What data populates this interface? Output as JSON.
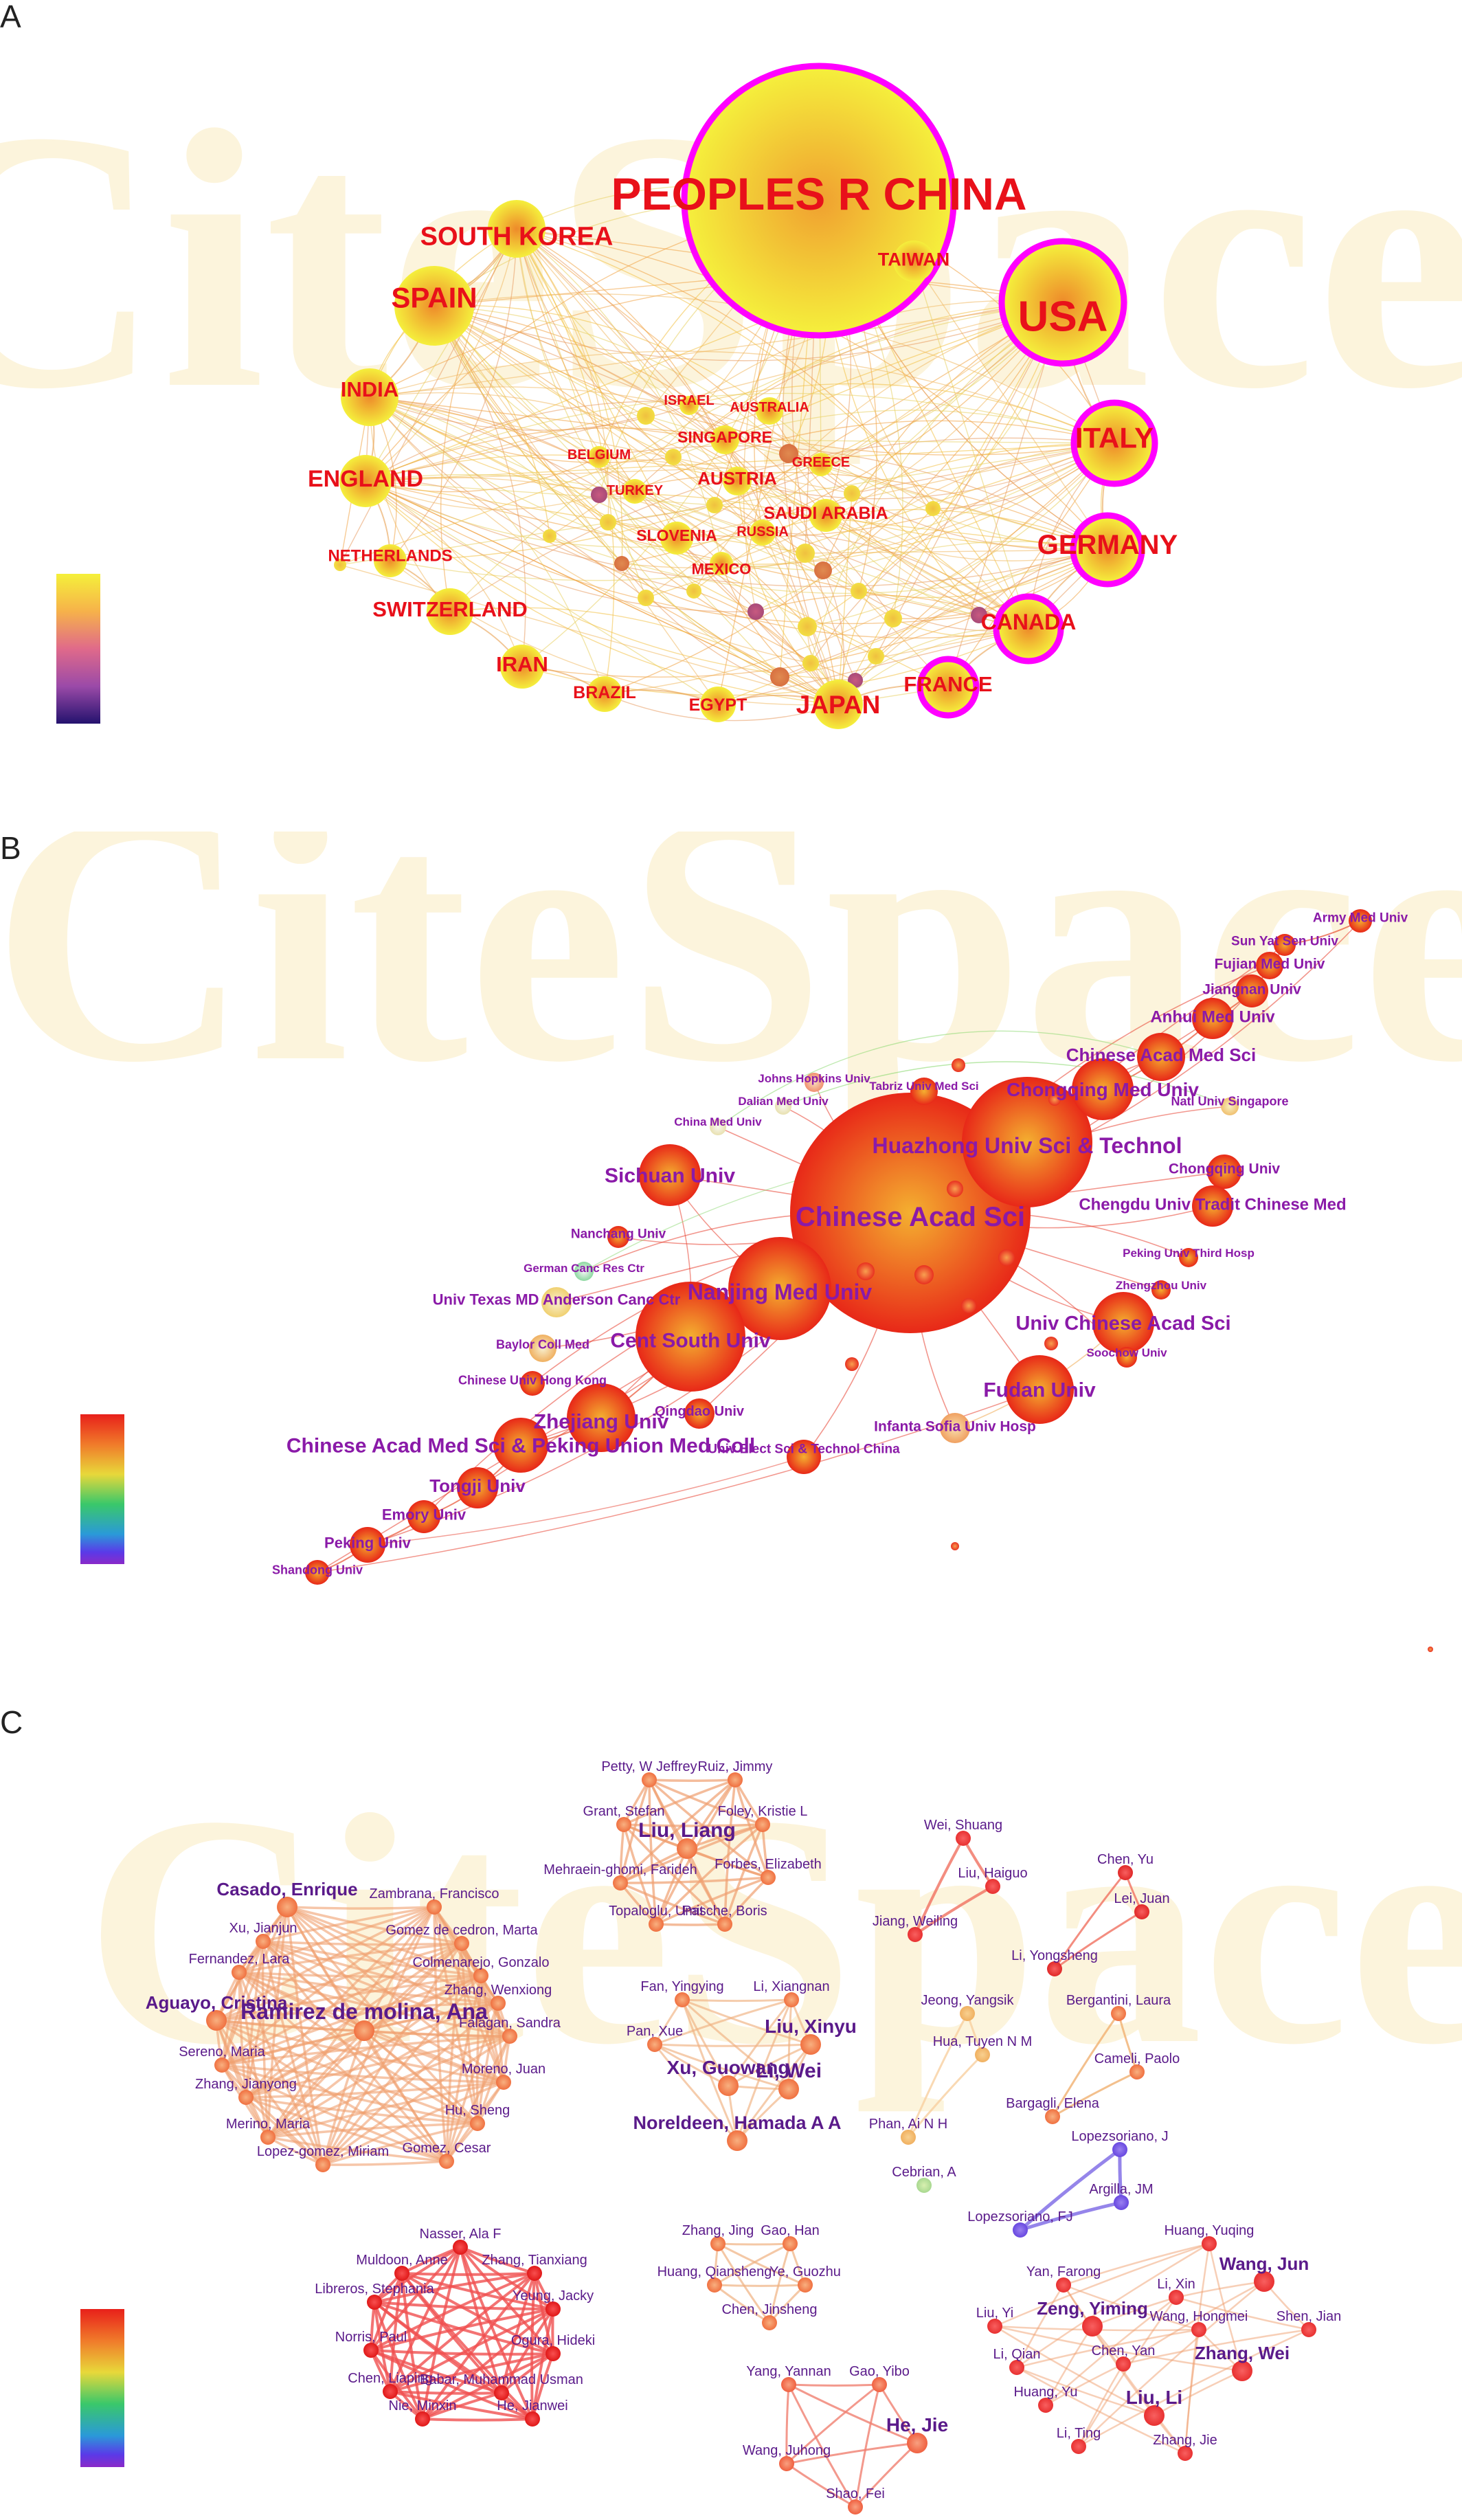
{
  "panels": [
    {
      "id": "A",
      "label": "A",
      "watermark": "CiteSpace",
      "legend_colors": [
        "#f5f03a",
        "#f6b24a",
        "#e06a8a",
        "#9b4aa8",
        "#3a1e8e",
        "#24126e"
      ],
      "accent": "#ff00ff",
      "nodes": [
        {
          "label": "PEOPLES R CHINA",
          "ring": true
        },
        {
          "label": "USA",
          "ring": true
        },
        {
          "label": "SOUTH KOREA",
          "ring": false
        },
        {
          "label": "SPAIN",
          "ring": false
        },
        {
          "label": "TAIWAN",
          "ring": false
        },
        {
          "label": "INDIA",
          "ring": false
        },
        {
          "label": "ITALY",
          "ring": true
        },
        {
          "label": "ENGLAND",
          "ring": false
        },
        {
          "label": "GERMANY",
          "ring": true
        },
        {
          "label": "NETHERLANDS",
          "ring": false
        },
        {
          "label": "CANADA",
          "ring": true
        },
        {
          "label": "SWITZERLAND",
          "ring": false
        },
        {
          "label": "IRAN",
          "ring": false
        },
        {
          "label": "FRANCE",
          "ring": true
        },
        {
          "label": "JAPAN",
          "ring": false
        },
        {
          "label": "BRAZIL",
          "ring": false
        },
        {
          "label": "EGYPT",
          "ring": false
        },
        {
          "label": "ISRAEL",
          "ring": false
        },
        {
          "label": "AUSTRALIA",
          "ring": false
        },
        {
          "label": "SINGAPORE",
          "ring": false
        },
        {
          "label": "BELGIUM",
          "ring": false
        },
        {
          "label": "AUSTRIA",
          "ring": false
        },
        {
          "label": "GREECE",
          "ring": false
        },
        {
          "label": "TURKEY",
          "ring": false
        },
        {
          "label": "SAUDI ARABIA",
          "ring": false
        },
        {
          "label": "SLOVENIA",
          "ring": false
        },
        {
          "label": "RUSSIA",
          "ring": false
        },
        {
          "label": "MEXICO",
          "ring": false
        }
      ]
    },
    {
      "id": "B",
      "label": "B",
      "watermark": "CiteSpace",
      "legend_colors": [
        "#e8201a",
        "#f07a2a",
        "#e8d83a",
        "#3ac86a",
        "#2a9ad8",
        "#5a3ae8",
        "#8a2ac8"
      ],
      "nodes": [
        {
          "label": "Chinese Acad Sci"
        },
        {
          "label": "Huazhong Univ Sci & Technol"
        },
        {
          "label": "Nanjing Med Univ"
        },
        {
          "label": "Cent South Univ"
        },
        {
          "label": "Sichuan Univ"
        },
        {
          "label": "Chongqing Med Univ"
        },
        {
          "label": "Chinese Acad Med Sci"
        },
        {
          "label": "Anhui Med Univ"
        },
        {
          "label": "Jiangnan Univ"
        },
        {
          "label": "Fujian Med Univ"
        },
        {
          "label": "Sun Yat Sen Univ"
        },
        {
          "label": "Army Med Univ"
        },
        {
          "label": "Natl Univ Singapore"
        },
        {
          "label": "Chongqing Univ"
        },
        {
          "label": "Chengdu Univ Tradit Chinese Med"
        },
        {
          "label": "Peking Univ Third Hosp"
        },
        {
          "label": "Zhengzhou Univ"
        },
        {
          "label": "Univ Chinese Acad Sci"
        },
        {
          "label": "Soochow Univ"
        },
        {
          "label": "Fudan Univ"
        },
        {
          "label": "Infanta Sofia Univ Hosp"
        },
        {
          "label": "Univ Elect Sci & Technol China"
        },
        {
          "label": "Qingdao Univ"
        },
        {
          "label": "Zhejiang Univ"
        },
        {
          "label": "Chinese Acad Med Sci & Peking Union Med Coll"
        },
        {
          "label": "Tongji Univ"
        },
        {
          "label": "Emory Univ"
        },
        {
          "label": "Peking Univ"
        },
        {
          "label": "Shandong Univ"
        },
        {
          "label": "Chinese Univ Hong Kong"
        },
        {
          "label": "Baylor Coll Med"
        },
        {
          "label": "Univ Texas MD Anderson Canc Ctr"
        },
        {
          "label": "German Canc Res Ctr"
        },
        {
          "label": "Nanchang Univ"
        },
        {
          "label": "China Med Univ"
        },
        {
          "label": "Dalian Med Univ"
        },
        {
          "label": "Johns Hopkins Univ"
        },
        {
          "label": "Tabriz Univ Med Sci"
        }
      ]
    },
    {
      "id": "C",
      "label": "C",
      "watermark": "CiteSpace",
      "legend_colors": [
        "#e8201a",
        "#f07a2a",
        "#e8d83a",
        "#3ac86a",
        "#2a9ad8",
        "#5a3ae8",
        "#8a2ac8"
      ],
      "clusters": [
        {
          "nodes": [
            "Petty, W Jeffrey",
            "Ruiz, Jimmy",
            "Grant, Stefan",
            "Foley, Kristie L",
            "Liu, Liang",
            "Mehraein-ghomi, Farideh",
            "Forbes, Elizabeth",
            "Topaloglu, Umit",
            "Pasche, Boris"
          ]
        },
        {
          "nodes": [
            "Wei, Shuang",
            "Liu, Haiguo",
            "Jiang, Weiling"
          ]
        },
        {
          "nodes": [
            "Chen, Yu",
            "Lei, Juan",
            "Li, Yongsheng"
          ]
        },
        {
          "nodes": [
            "Casado, Enrique",
            "Zambrana, Francisco",
            "Xu, Jianjun",
            "Gomez de cedron, Marta",
            "Fernandez, Lara",
            "Colmenarejo, Gonzalo",
            "Zhang, Wenxiong",
            "Aguayo, Cristina",
            "Ramirez de molina, Ana",
            "Falagan, Sandra",
            "Sereno, Maria",
            "Zhang, Jianyong",
            "Moreno, Juan",
            "Hu, Sheng",
            "Merino, Maria",
            "Lopez-gomez, Miriam",
            "Gomez, Cesar"
          ]
        },
        {
          "nodes": [
            "Fan, Yingying",
            "Li, Xiangnan",
            "Pan, Xue",
            "Liu, Xinyu",
            "Xu, Guowang",
            "Li, Wei",
            "Noreldeen, Hamada A A"
          ]
        },
        {
          "nodes": [
            "Jeong, Yangsik",
            "Hua, Tuyen N M",
            "Phan, Ai N H"
          ]
        },
        {
          "nodes": [
            "Bergantini, Laura",
            "Cameli, Paolo",
            "Bargagli, Elena"
          ]
        },
        {
          "nodes": [
            "Cebrian, A"
          ]
        },
        {
          "nodes": [
            "Lopezsoriano, J",
            "Argilla, JM",
            "Lopezsoriano, FJ"
          ]
        },
        {
          "nodes": [
            "Nasser, Ala F",
            "Muldoon, Anne",
            "Zhang, Tianxiang",
            "Libreros, Stephania",
            "Yeung, Jacky",
            "Norris, Paul",
            "Ogura, Hideki",
            "Chen, Liaping",
            "Babar, Muhammad Usman",
            "Nie, Minxin",
            "He, Jianwei"
          ]
        },
        {
          "nodes": [
            "Zhang, Jing",
            "Gao, Han",
            "Huang, Qiansheng",
            "Ye, Guozhu",
            "Chen, Jinsheng"
          ]
        },
        {
          "nodes": [
            "Huang, Yuqing",
            "Wang, Jun",
            "Yan, Farong",
            "Li, Xin",
            "Liu, Yi",
            "Zeng, Yiming",
            "Wang, Hongmei",
            "Shen, Jian",
            "Li, Qian",
            "Chen, Yan",
            "Zhang, Wei",
            "Huang, Yu",
            "Liu, Li",
            "Li, Ting",
            "Zhang, Jie"
          ]
        },
        {
          "nodes": [
            "Yang, Yannan",
            "Gao, Yibo",
            "He, Jie",
            "Wang, Juhong",
            "Shao, Fei"
          ]
        }
      ]
    }
  ]
}
